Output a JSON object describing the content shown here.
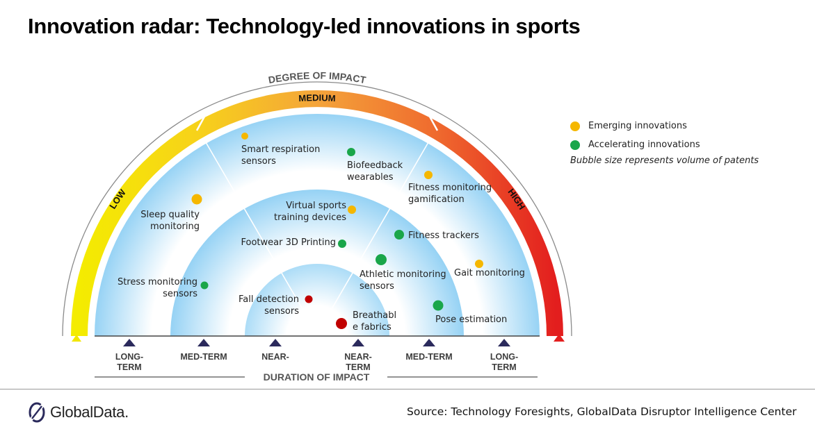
{
  "title": "Innovation radar: Technology-led innovations in sports",
  "degree_label": "DEGREE OF IMPACT",
  "bands": {
    "low": "LOW",
    "medium": "MEDIUM",
    "high": "HIGH"
  },
  "duration_label": "DURATION OF IMPACT",
  "axis_labels": [
    {
      "line1": "LONG-",
      "line2": "TERM"
    },
    {
      "line1": "MED-TERM",
      "line2": ""
    },
    {
      "line1": "NEAR-",
      "line2": ""
    },
    {
      "line1": "NEAR-",
      "line2": "TERM"
    },
    {
      "line1": "MED-TERM",
      "line2": ""
    },
    {
      "line1": "LONG-",
      "line2": "TERM"
    }
  ],
  "legend": {
    "emerging": "Emerging innovations",
    "accelerating": "Accelerating innovations",
    "note": "Bubble size represents volume of patents"
  },
  "colors": {
    "emerging": "#f5b700",
    "accelerating": "#1aa64a",
    "red": "#c00000",
    "low_band": "#f2e600",
    "high_band": "#e31e1e"
  },
  "innovations": [
    {
      "name": "smart-respiration-sensors",
      "line1": "Smart respiration",
      "line2": "sensors",
      "category": "emerging"
    },
    {
      "name": "biofeedback-wearables",
      "line1": "Biofeedback",
      "line2": "wearables",
      "category": "accelerating"
    },
    {
      "name": "fitness-monitoring-gamification",
      "line1": "Fitness monitoring",
      "line2": "gamification",
      "category": "emerging"
    },
    {
      "name": "sleep-quality-monitoring",
      "line1": "Sleep quality",
      "line2": "monitoring",
      "category": "emerging"
    },
    {
      "name": "virtual-sports-training-devices",
      "line1": "Virtual sports",
      "line2": "training devices",
      "category": "emerging"
    },
    {
      "name": "footwear-3d-printing",
      "line1": "Footwear 3D Printing",
      "line2": "",
      "category": "accelerating"
    },
    {
      "name": "fitness-trackers",
      "line1": "Fitness trackers",
      "line2": "",
      "category": "accelerating"
    },
    {
      "name": "athletic-monitoring-sensors",
      "line1": "Athletic monitoring",
      "line2": "sensors",
      "category": "accelerating"
    },
    {
      "name": "gait-monitoring",
      "line1": "Gait monitoring",
      "line2": "",
      "category": "emerging"
    },
    {
      "name": "stress-monitoring-sensors",
      "line1": "Stress monitoring",
      "line2": "sensors",
      "category": "accelerating"
    },
    {
      "name": "fall-detection-sensors",
      "line1": "Fall detection",
      "line2": "sensors",
      "category": "red"
    },
    {
      "name": "breathable-fabrics",
      "line1": "Breathabl",
      "line2": "e fabrics",
      "category": "red"
    },
    {
      "name": "pose-estimation",
      "line1": "Pose estimation",
      "line2": "",
      "category": "accelerating"
    }
  ],
  "logo_text": "GlobalData.",
  "source": "Source: Technology Foresights, GlobalData Disruptor Intelligence Center"
}
